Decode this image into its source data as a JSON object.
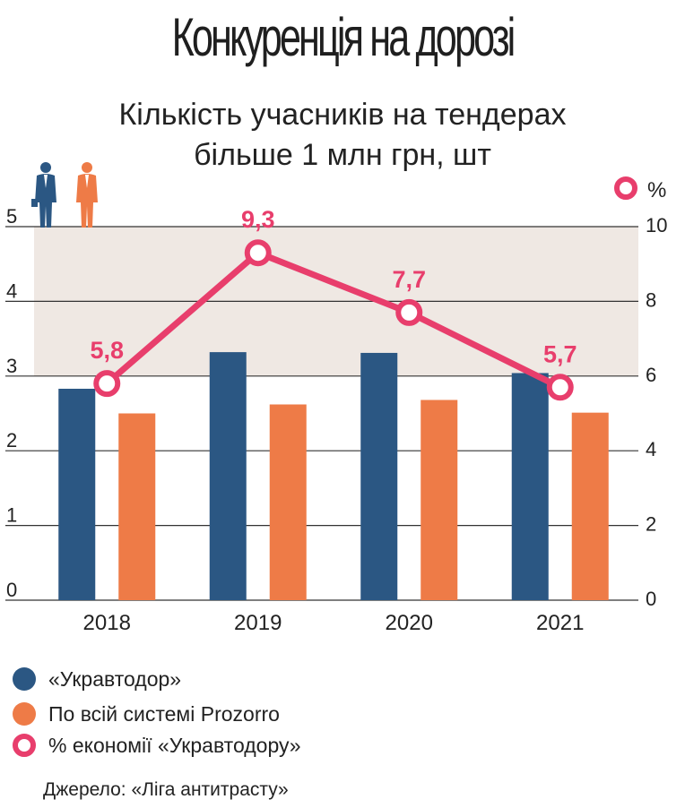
{
  "title": "Конкуренція на дорозі",
  "subtitle_line1": "Кількість учасників на тендерах",
  "subtitle_line2": "більше 1 млн грн, шт",
  "colors": {
    "ukravtodor": "#2b5783",
    "prozorro": "#ee7b47",
    "savings": "#e83e6c",
    "band": "#efe8e3",
    "grid": "#333333"
  },
  "chart_data": {
    "type": "bar+line",
    "categories": [
      "2018",
      "2019",
      "2020",
      "2021"
    ],
    "series": [
      {
        "name": "«Укравтодор»",
        "type": "bar",
        "axis": "left",
        "values": [
          2.83,
          3.32,
          3.31,
          3.04
        ]
      },
      {
        "name": "По всій системі Prozorro",
        "type": "bar",
        "axis": "left",
        "values": [
          2.5,
          2.62,
          2.68,
          2.51
        ]
      },
      {
        "name": "% економії «Укравтодору»",
        "type": "line",
        "axis": "right",
        "values": [
          5.8,
          9.3,
          7.7,
          5.7
        ],
        "labels": [
          "5,8",
          "9,3",
          "7,7",
          "5,7"
        ]
      }
    ],
    "left_axis": {
      "ylim": [
        0,
        5
      ],
      "ticks": [
        "0",
        "1",
        "2",
        "3",
        "4",
        "5"
      ]
    },
    "right_axis": {
      "ylim": [
        0,
        10
      ],
      "ticks": [
        "0",
        "2",
        "4",
        "6",
        "8",
        "10"
      ],
      "unit_label": "%"
    },
    "grid": true,
    "legend_position": "bottom-left"
  },
  "legend": [
    {
      "label": "«Укравтодор»",
      "style": "filled",
      "color": "#2b5783"
    },
    {
      "label": "По всій системі Prozorro",
      "style": "filled",
      "color": "#ee7b47"
    },
    {
      "label": "% економії «Укравтодору»",
      "style": "ring",
      "color": "#e83e6c"
    }
  ],
  "icons": {
    "left_axis": [
      "person-blue-icon",
      "person-orange-icon"
    ],
    "right_axis": "ring-percent-icon"
  },
  "source": "Джерело: «Ліга антитрасту»"
}
